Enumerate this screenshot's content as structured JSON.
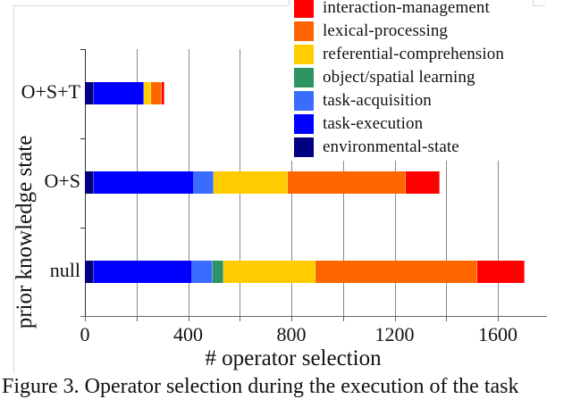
{
  "chart_data": {
    "type": "bar",
    "orientation": "horizontal",
    "stacked": true,
    "title": "",
    "xlabel": "# operator selection",
    "ylabel": "prior knowledge state",
    "xlim": [
      0,
      1790
    ],
    "xticks": [
      0,
      400,
      800,
      1200,
      1600
    ],
    "grid": true,
    "legend_position": "upper right",
    "categories": [
      "O+S+T",
      "O+S",
      "null"
    ],
    "series": [
      {
        "name": "environmental-state",
        "color": "#000080",
        "values": [
          35,
          35,
          35
        ]
      },
      {
        "name": "task-execution",
        "color": "#0000ff",
        "values": [
          194,
          388,
          381
        ]
      },
      {
        "name": "task-acquisition",
        "color": "#3a6cff",
        "values": [
          0,
          76,
          79
        ]
      },
      {
        "name": "object/spatial learning",
        "color": "#2e9464",
        "values": [
          0,
          0,
          42
        ]
      },
      {
        "name": "referential-comprehension",
        "color": "#ffcc00",
        "values": [
          27,
          287,
          356
        ]
      },
      {
        "name": "lexical-processing",
        "color": "#ff6600",
        "values": [
          42,
          457,
          627
        ]
      },
      {
        "name": "interaction-management",
        "color": "#ff0000",
        "values": [
          10,
          132,
          184
        ]
      }
    ],
    "totals": [
      308,
      1375,
      1704
    ]
  },
  "axis": {
    "x_tick_labels": [
      "0",
      "400",
      "800",
      "1200",
      "1600"
    ],
    "y_tick_labels": [
      "O+S+T",
      "O+S",
      "null"
    ],
    "xlabel": "# operator selection",
    "ylabel": "prior knowledge state"
  },
  "legend": {
    "items": [
      {
        "label": "interaction-management",
        "color": "#ff0000"
      },
      {
        "label": "lexical-processing",
        "color": "#ff6600"
      },
      {
        "label": "referential-comprehension",
        "color": "#ffcc00"
      },
      {
        "label": "object/spatial learning",
        "color": "#2e9464"
      },
      {
        "label": "task-acquisition",
        "color": "#3a6cff"
      },
      {
        "label": "task-execution",
        "color": "#0000ff"
      },
      {
        "label": "environmental-state",
        "color": "#000080"
      }
    ]
  },
  "caption": "Figure 3. Operator selection during the execution of the task"
}
